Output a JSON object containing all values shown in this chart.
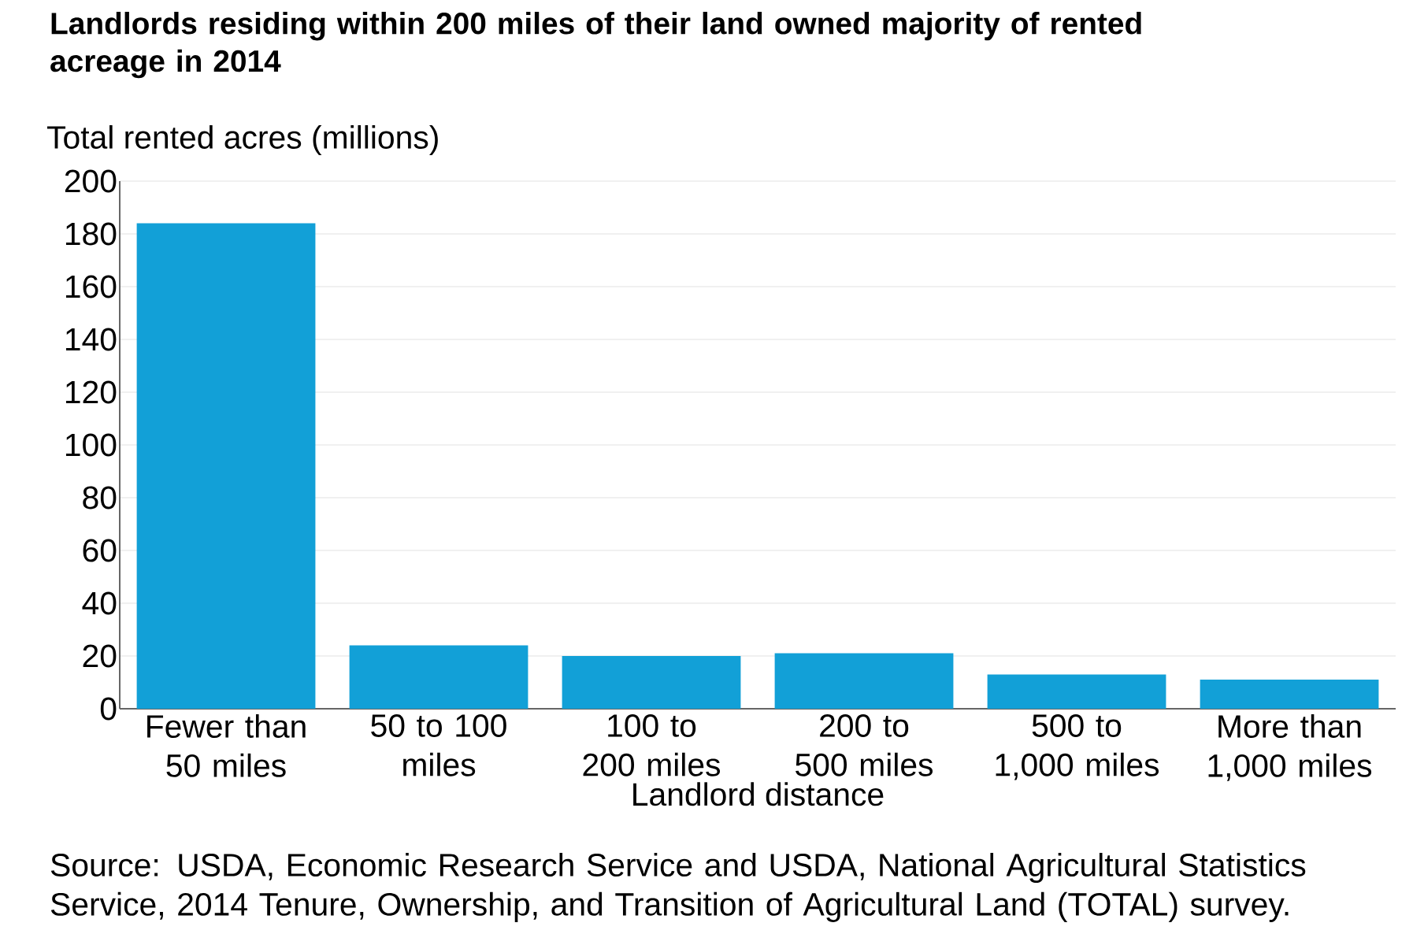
{
  "chart_data": {
    "type": "bar",
    "title": "Landlords residing within 200 miles of their land owned majority of rented acreage in 2014",
    "ylabel": "Total rented acres (millions)",
    "xlabel": "Landlord distance",
    "categories": [
      "Fewer than 50 miles",
      "50 to 100 miles",
      "100 to 200 miles",
      "200 to 500 miles",
      "500 to 1,000 miles",
      "More than 1,000 miles"
    ],
    "values": [
      184,
      24,
      20,
      21,
      13,
      11
    ],
    "color": "#12a0d7",
    "ylim": [
      0,
      200
    ],
    "yticks": [
      0,
      20,
      40,
      60,
      80,
      100,
      120,
      140,
      160,
      180,
      200
    ],
    "grid": "y",
    "annotations": [
      "Source: USDA, Economic Research Service and USDA, National Agricultural Statistics Service, 2014 Tenure, Ownership, and Transition of Agricultural Land (TOTAL) survey."
    ]
  }
}
